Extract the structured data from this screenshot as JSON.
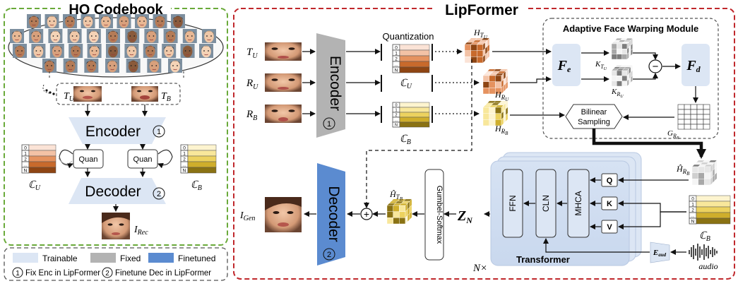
{
  "hq_panel": {
    "title": "HQ Codebook",
    "tu_label": "T",
    "tu_sub": "U",
    "tb_label": "T",
    "tb_sub": "B",
    "encoder_label": "Encoder",
    "encoder_num": "1",
    "decoder_label": "Decoder",
    "decoder_num": "2",
    "quan_label": "Quan",
    "cu_label": "ℂ",
    "cu_sub": "U",
    "cb_label": "ℂ",
    "cb_sub": "B",
    "irec_label": "I",
    "irec_sub": "Rec",
    "codebook_rows": [
      "0",
      "1",
      "2",
      "...",
      "N"
    ]
  },
  "legend": {
    "trainable": "Trainable",
    "fixed": "Fixed",
    "finetuned": "Finetuned",
    "note1_num": "1",
    "note1_text": "Fix Enc in LipFormer",
    "note2_num": "2",
    "note2_text": "Finetune Dec in LipFormer"
  },
  "lipformer": {
    "title": "LipFormer",
    "inputs": [
      {
        "main": "T",
        "sub": "U"
      },
      {
        "main": "R",
        "sub": "U"
      },
      {
        "main": "R",
        "sub": "B"
      }
    ],
    "encoder_label": "Encoder",
    "encoder_num": "1",
    "quantization_label": "Quantization",
    "cu_label": "ℂ",
    "cu_sub": "U",
    "cb_label": "ℂ",
    "cb_sub": "B",
    "h_tu": {
      "main": "H",
      "sub": "T",
      "subsub": "U"
    },
    "h_ru": {
      "main": "H",
      "sub": "R",
      "subsub": "U"
    },
    "h_rb": {
      "main": "H",
      "sub": "R",
      "subsub": "B"
    },
    "afw_title": "Adaptive Face Warping Module",
    "fe_label": "F",
    "fe_sub": "e",
    "fd_label": "F",
    "fd_sub": "d",
    "k_tu": {
      "main": "K",
      "sub": "T",
      "subsub": "U"
    },
    "k_ru": {
      "main": "K",
      "sub": "R",
      "subsub": "U"
    },
    "g_rb": {
      "main": "G",
      "sub": "R",
      "subsub": "B"
    },
    "bilinear_line1": "Bilinear",
    "bilinear_line2": "Sampling",
    "hhat_rb": {
      "main": "Ĥ",
      "sub": "R",
      "subsub": "B"
    },
    "hhat_tb": {
      "main": "Ĥ",
      "sub": "T",
      "subsub": "B"
    },
    "cb_right_label": "ℂ",
    "cb_right_sub": "B",
    "transformer_label": "Transformer",
    "ffn_label": "FFN",
    "cln_label": "CLN",
    "mhca_label": "MHCA",
    "q_label": "Q",
    "k_label": "K",
    "v_label": "V",
    "nx_label": "N×",
    "eaud_main": "E",
    "eaud_sub": "aud",
    "audio_label": "audio",
    "zn_main": "Z",
    "zn_sub": "N",
    "gumbel_label": "Gumbel-Softmax",
    "decoder_label": "Decoder",
    "decoder_num": "2",
    "igen_main": "I",
    "igen_sub": "Gen",
    "plus_symbol": "+",
    "minus_symbol": "−"
  },
  "colors": {
    "trainable": "#dce6f4",
    "fixed": "#b3b3b3",
    "finetuned": "#5b8bd0",
    "hq_border": "#6aaa3a",
    "lip_border": "#c0282c",
    "codebook_u": [
      "#fbe3d6",
      "#f3c2a6",
      "#e5925f",
      "#c86a2c",
      "#8e4513"
    ],
    "codebook_b": [
      "#fdf4cf",
      "#f8e79b",
      "#ecd25f",
      "#cfae2b",
      "#8a7213"
    ]
  }
}
